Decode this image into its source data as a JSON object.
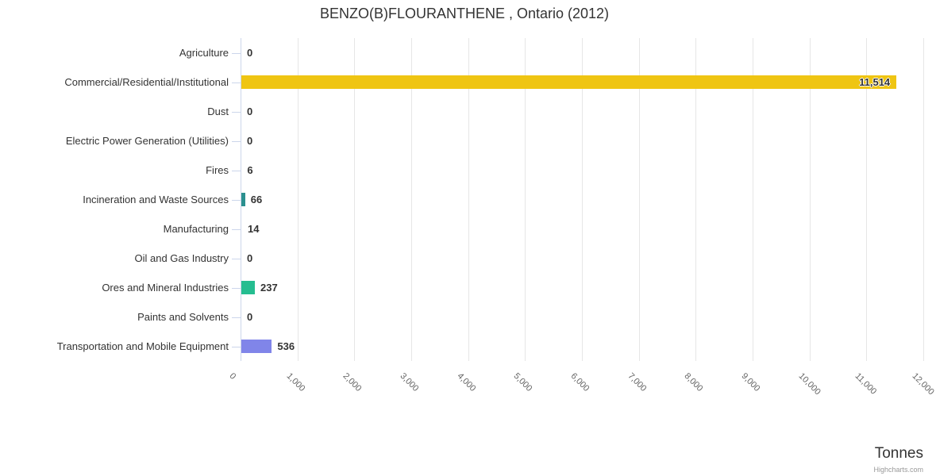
{
  "chart_data": {
    "type": "bar",
    "title": "BENZO(B)FLOURANTHENE , Ontario (2012)",
    "categories": [
      "Agriculture",
      "Commercial/Residential/Institutional",
      "Dust",
      "Electric Power Generation (Utilities)",
      "Fires",
      "Incineration and Waste Sources",
      "Manufacturing",
      "Oil and Gas Industry",
      "Ores and Mineral Industries",
      "Paints and Solvents",
      "Transportation and Mobile Equipment"
    ],
    "values": [
      0,
      11514,
      0,
      0,
      6,
      66,
      14,
      0,
      237,
      0,
      536
    ],
    "value_labels": [
      "0",
      "11,514",
      "0",
      "0",
      "6",
      "66",
      "14",
      "0",
      "237",
      "0",
      "536"
    ],
    "bar_colors": [
      null,
      "#efc513",
      null,
      null,
      null,
      "#2b908f",
      null,
      null,
      "#25bd90",
      null,
      "#8085e9"
    ],
    "xlabel": "",
    "ylabel": "Tonnes",
    "axis": {
      "min": 0,
      "max": 12000,
      "tick_interval": 1000,
      "tick_labels": [
        "0",
        "1,000",
        "2,000",
        "3,000",
        "4,000",
        "5,000",
        "6,000",
        "7,000",
        "8,000",
        "9,000",
        "10,000",
        "11,000",
        "12,000"
      ]
    },
    "legend": "none",
    "grid": true
  },
  "credit": "Highcharts.com",
  "colors": {
    "grid": "#e6e6e6",
    "axis_line": "#ccd6eb",
    "category_label": "#333333",
    "tick_label": "#666666",
    "value_label": "#333333",
    "title": "#333333",
    "credit": "#999999"
  }
}
